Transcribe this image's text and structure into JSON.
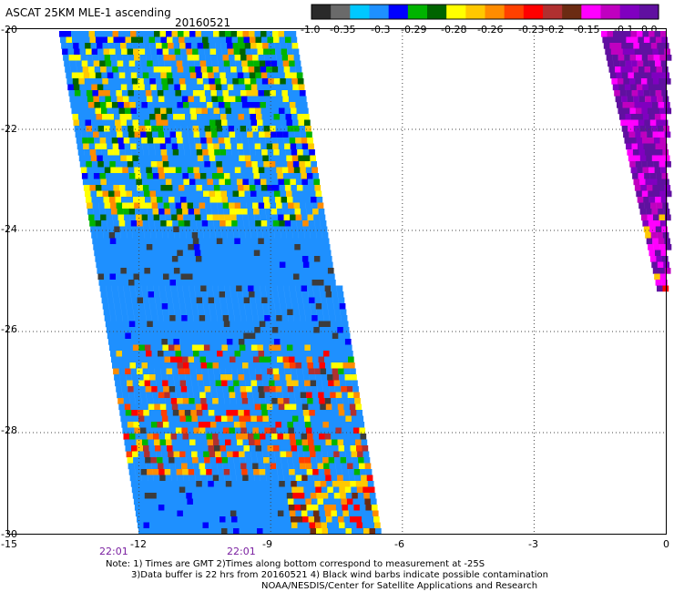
{
  "header": {
    "title": "ASCAT 25KM MLE-1 ascending",
    "date": "20160521"
  },
  "colorbar": {
    "labels": [
      "-1.0",
      "-0.35",
      "-0.3",
      "-0.29",
      "-0.28",
      "-0.26",
      "-0.23",
      "-0.2",
      "-0.15",
      "-0.1",
      "0.0"
    ],
    "colors": [
      "#2a2a2a",
      "#6a6a6a",
      "#00c8ff",
      "#1e90ff",
      "#0000ff",
      "#00b400",
      "#006400",
      "#ffff00",
      "#ffc800",
      "#ff8c00",
      "#ff4000",
      "#ff0000",
      "#b03030",
      "#6b2b12",
      "#ff00ff",
      "#c000c0",
      "#8000c0",
      "#6010a0"
    ]
  },
  "axes": {
    "x_ticks": [
      "-15",
      "-12",
      "-9",
      "-6",
      "-3",
      "0"
    ],
    "y_ticks": [
      "-20",
      "-22",
      "-24",
      "-26",
      "-28",
      "-30"
    ],
    "x_range": [
      -15,
      0
    ],
    "y_range": [
      -30,
      -20
    ]
  },
  "swath_times": [
    "22:01",
    "22:01"
  ],
  "notes": [
    "Note: 1) Times are GMT 2)Times along bottom correspond to measurement at -25S",
    "3)Data buffer is 22 hrs from 20160521 4) Black wind barbs indicate possible contamination",
    "NOAA/NESDIS/Center for Satellite Applications and Research"
  ]
}
